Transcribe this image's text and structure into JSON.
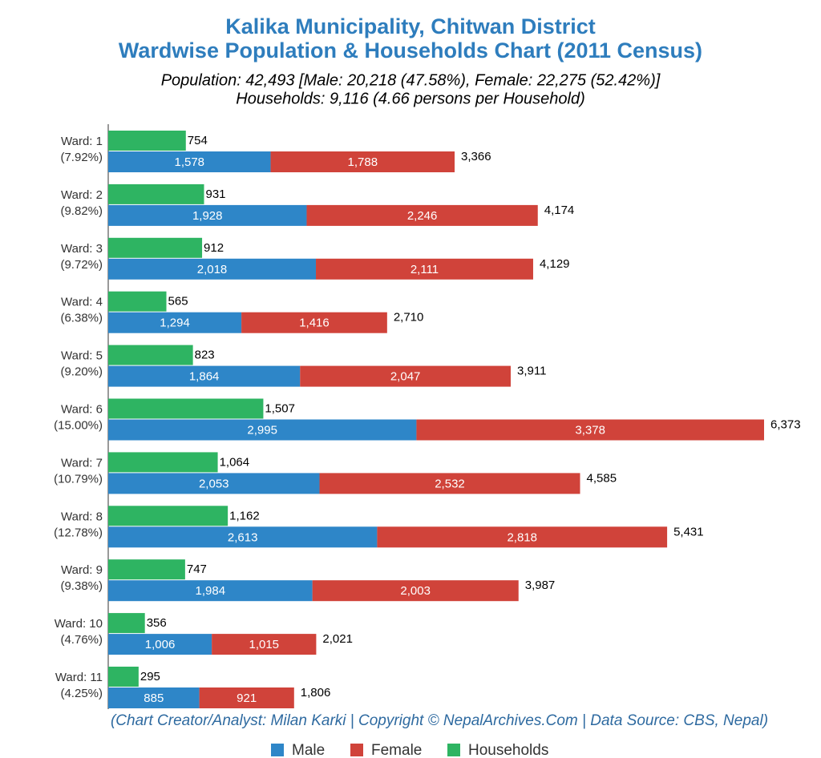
{
  "chart_data": {
    "type": "bar",
    "title": "Kalika Municipality, Chitwan District",
    "title_line2": "Wardwise Population & Households Chart (2011 Census)",
    "subtitle": "Population: 42,493 [Male: 20,218 (47.58%), Female: 22,275 (52.42%)]",
    "subtitle_line2": "Households: 9,116 (4.66 persons per Household)",
    "footer": "(Chart Creator/Analyst: Milan Karki | Copyright © NepalArchives.Com | Data Source: CBS, Nepal)",
    "categories": [
      "Ward: 1",
      "Ward: 2",
      "Ward: 3",
      "Ward: 4",
      "Ward: 5",
      "Ward: 6",
      "Ward: 7",
      "Ward: 8",
      "Ward: 9",
      "Ward: 10",
      "Ward: 11"
    ],
    "category_shares": [
      "(7.92%)",
      "(9.82%)",
      "(9.72%)",
      "(6.38%)",
      "(9.20%)",
      "(15.00%)",
      "(10.79%)",
      "(12.78%)",
      "(9.38%)",
      "(4.76%)",
      "(4.25%)"
    ],
    "series": [
      {
        "name": "Male",
        "color": "#2e86c8",
        "stack": "population",
        "values": [
          1578,
          1928,
          2018,
          1294,
          1864,
          2995,
          2053,
          2613,
          1984,
          1006,
          885
        ],
        "value_labels": [
          "1,578",
          "1,928",
          "2,018",
          "1,294",
          "1,864",
          "2,995",
          "2,053",
          "2,613",
          "1,984",
          "1,006",
          "885"
        ]
      },
      {
        "name": "Female",
        "color": "#d0433a",
        "stack": "population",
        "values": [
          1788,
          2246,
          2111,
          1416,
          2047,
          3378,
          2532,
          2818,
          2003,
          1015,
          921
        ],
        "value_labels": [
          "1,788",
          "2,246",
          "2,111",
          "1,416",
          "2,047",
          "3,378",
          "2,532",
          "2,818",
          "2,003",
          "1,015",
          "921"
        ]
      },
      {
        "name": "Households",
        "color": "#2eb462",
        "stack": "households",
        "values": [
          754,
          931,
          912,
          565,
          823,
          1507,
          1064,
          1162,
          747,
          356,
          295
        ],
        "value_labels": [
          "754",
          "931",
          "912",
          "565",
          "823",
          "1,507",
          "1,064",
          "1,162",
          "747",
          "356",
          "295"
        ]
      }
    ],
    "total_labels": [
      "3,366",
      "4,174",
      "4,129",
      "2,710",
      "3,911",
      "6,373",
      "4,585",
      "5,431",
      "3,987",
      "2,021",
      "1,806"
    ]
  }
}
